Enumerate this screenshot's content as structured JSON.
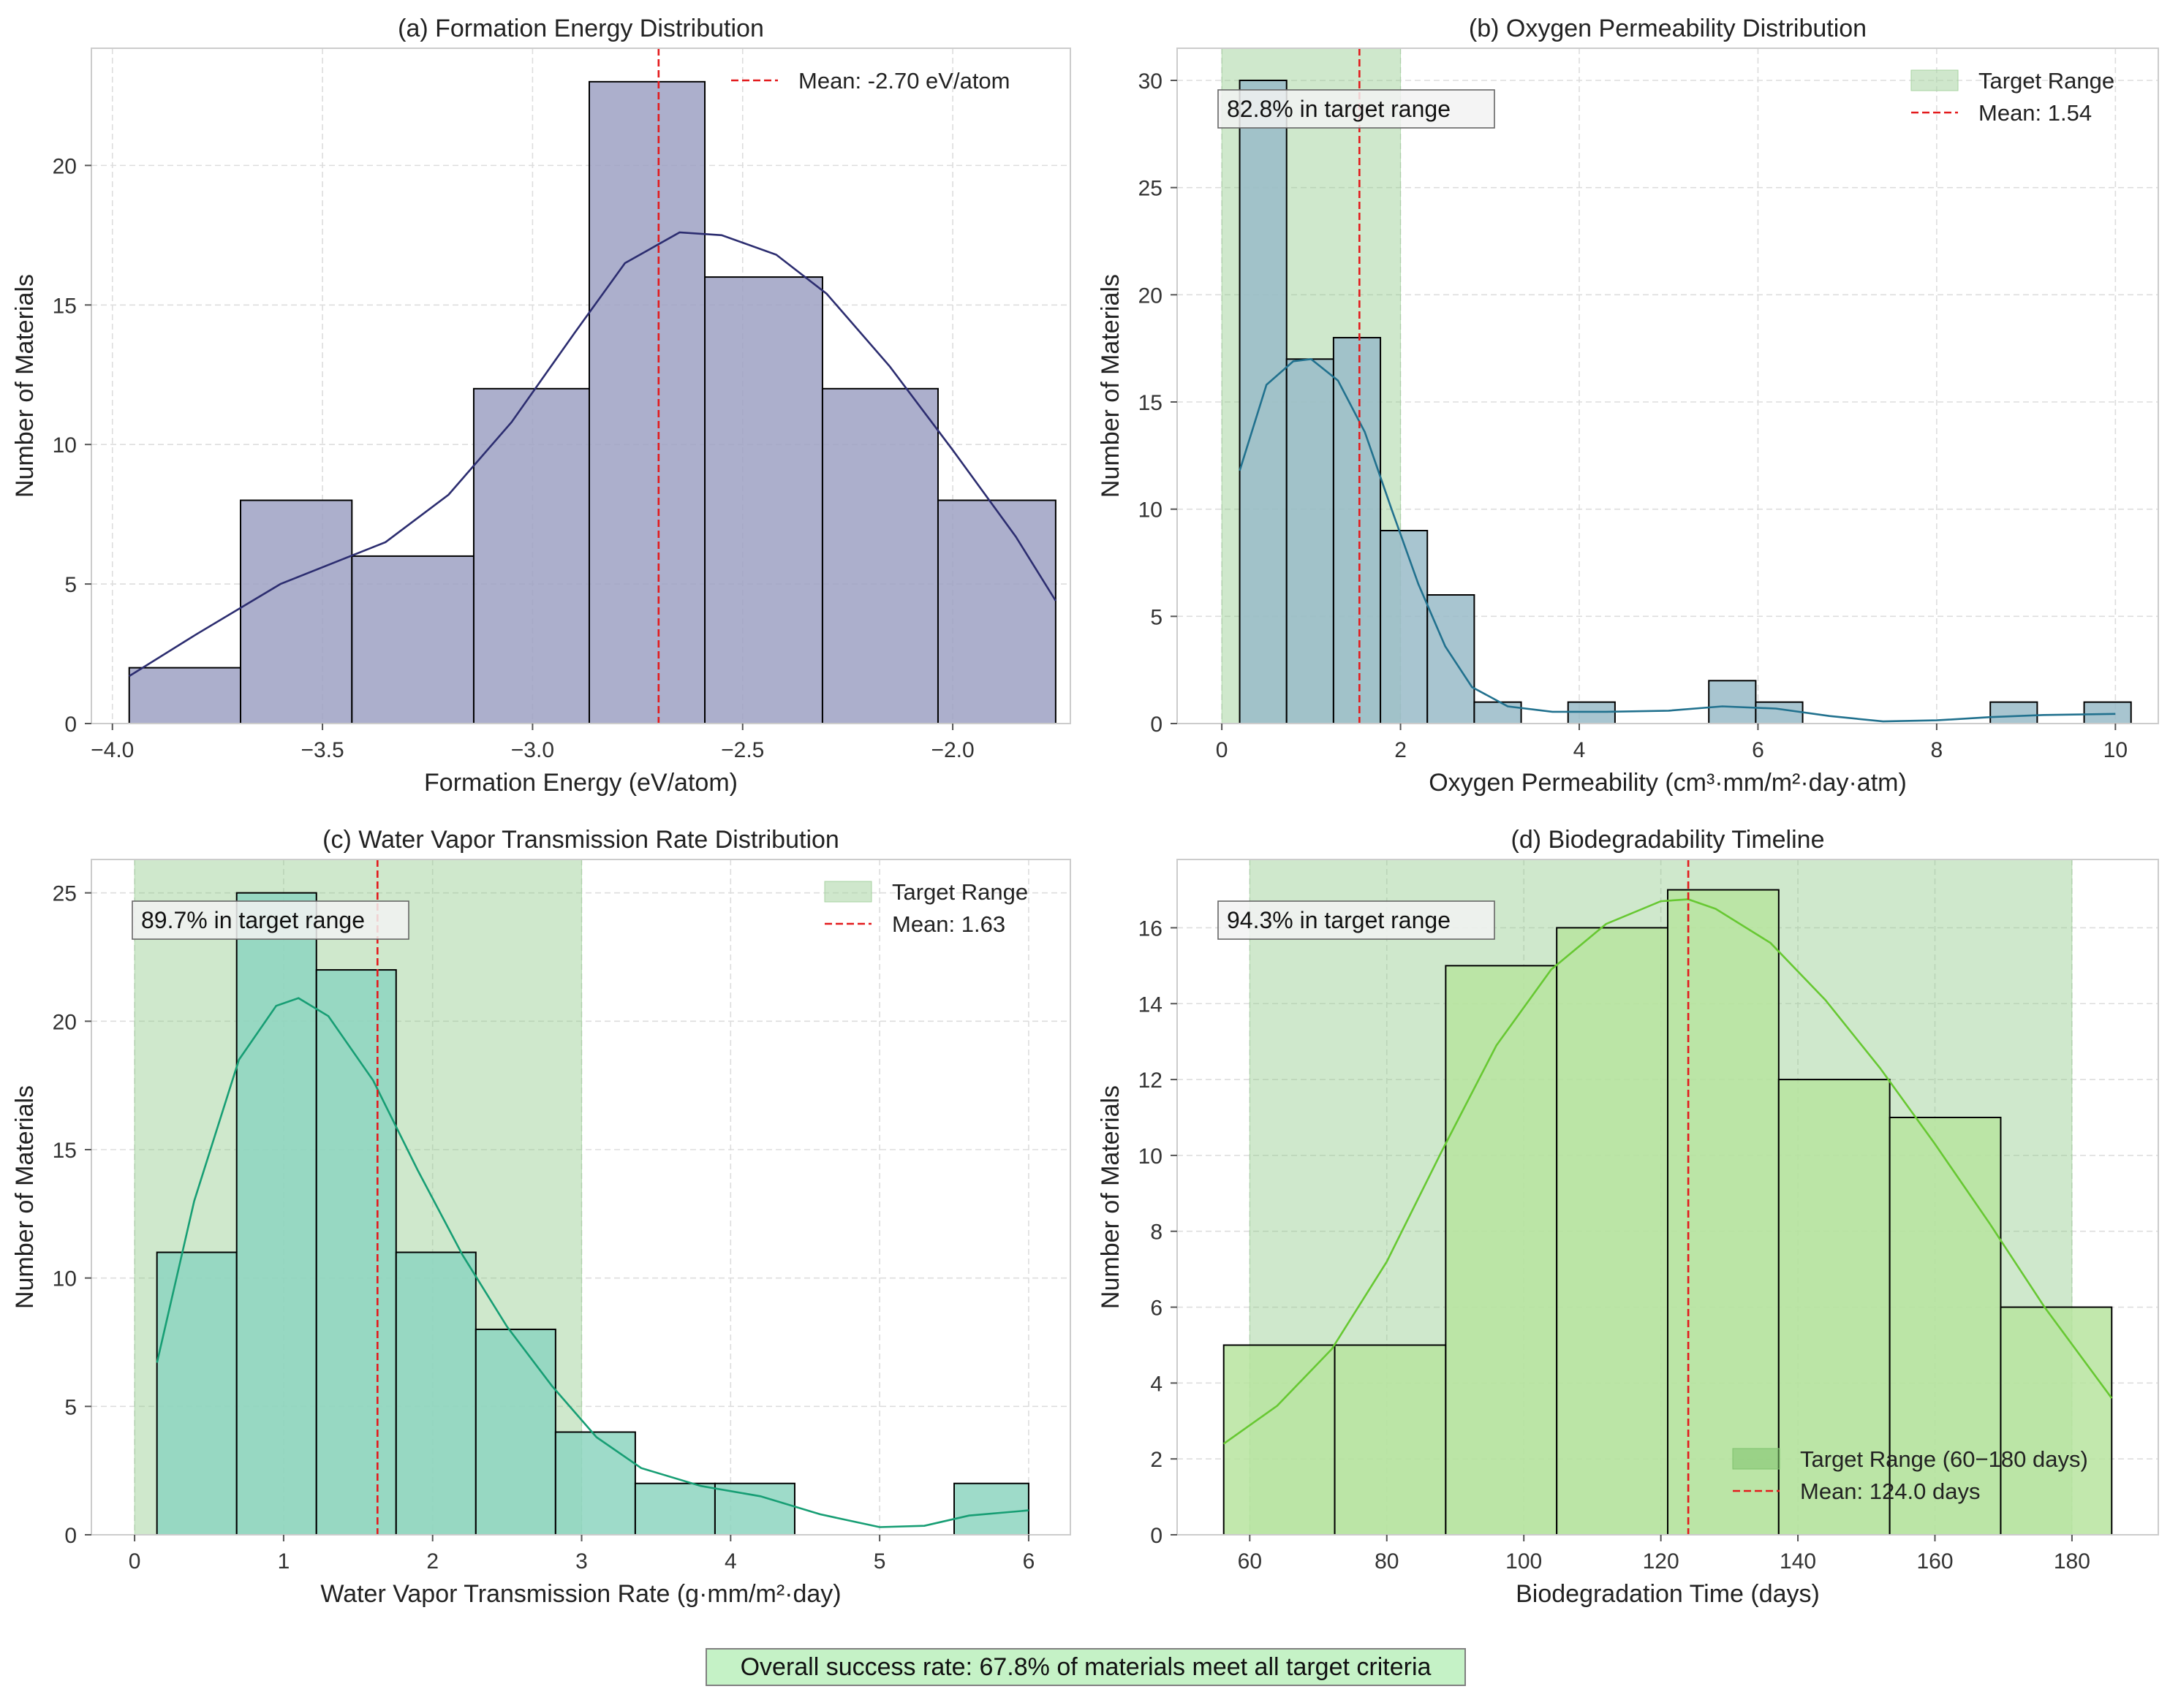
{
  "figure": {
    "footer": "Overall success rate: 67.8% of materials meet all target criteria",
    "footer_color": "#c5f2c6"
  },
  "chart_data": [
    {
      "type": "bar",
      "id": "a",
      "title": "(a) Formation Energy Distribution",
      "xlabel": "Formation Energy (eV/atom)",
      "ylabel": "Number of Materials",
      "xlim": [
        -4.05,
        -1.72
      ],
      "ylim": [
        0,
        24.2
      ],
      "xticks": [
        -4.0,
        -3.5,
        -3.0,
        -2.5,
        -2.0
      ],
      "xtick_labels": [
        "−4.0",
        "−3.5",
        "−3.0",
        "−2.5",
        "−2.0"
      ],
      "yticks": [
        0,
        5,
        10,
        15,
        20
      ],
      "ytick_labels": [
        "0",
        "5",
        "10",
        "15",
        "20"
      ],
      "bins": [
        -3.96,
        -3.695,
        -3.43,
        -3.14,
        -2.865,
        -2.59,
        -2.31,
        -2.035,
        -1.755
      ],
      "counts": [
        2,
        8,
        6,
        12,
        23,
        16,
        12,
        8
      ],
      "bar_color": "#9da1c3",
      "kde_color": "#2c2d70",
      "kde": [
        [
          -3.96,
          1.7
        ],
        [
          -3.8,
          3.2
        ],
        [
          -3.6,
          5.0
        ],
        [
          -3.45,
          5.9
        ],
        [
          -3.35,
          6.5
        ],
        [
          -3.2,
          8.2
        ],
        [
          -3.05,
          10.8
        ],
        [
          -2.9,
          14.0
        ],
        [
          -2.78,
          16.5
        ],
        [
          -2.65,
          17.6
        ],
        [
          -2.55,
          17.5
        ],
        [
          -2.42,
          16.8
        ],
        [
          -2.3,
          15.4
        ],
        [
          -2.15,
          12.8
        ],
        [
          -2.0,
          9.8
        ],
        [
          -1.85,
          6.7
        ],
        [
          -1.755,
          4.4
        ]
      ],
      "mean": -2.7,
      "legend": [
        {
          "kind": "line",
          "label": "Mean: -2.70 eV/atom",
          "color": "#e31a1c"
        }
      ]
    },
    {
      "type": "bar",
      "id": "b",
      "title": "(b) Oxygen Permeability Distribution",
      "xlabel": "Oxygen Permeability (cm³·mm/m²·day·atm)",
      "ylabel": "Number of Materials",
      "xlim": [
        -0.5,
        10.48
      ],
      "ylim": [
        0,
        31.5
      ],
      "xticks": [
        0,
        2,
        4,
        6,
        8,
        10
      ],
      "xtick_labels": [
        "0",
        "2",
        "4",
        "6",
        "8",
        "10"
      ],
      "yticks": [
        0,
        5,
        10,
        15,
        20,
        25,
        30
      ],
      "ytick_labels": [
        "0",
        "5",
        "10",
        "15",
        "20",
        "25",
        "30"
      ],
      "bins": [
        0.2,
        0.725,
        1.25,
        1.775,
        2.3,
        2.825,
        3.35,
        3.875,
        4.4,
        4.925,
        5.45,
        5.975,
        6.5,
        7.025,
        7.55,
        8.075,
        8.6,
        9.125,
        9.65,
        10.175
      ],
      "counts": [
        30,
        17,
        18,
        9,
        6,
        1,
        0,
        1,
        0,
        0,
        2,
        1,
        0,
        0,
        0,
        0,
        1,
        0,
        1
      ],
      "bar_color": "#99bbc8",
      "kde_color": "#21718e",
      "kde": [
        [
          0.2,
          11.8
        ],
        [
          0.5,
          15.8
        ],
        [
          0.8,
          16.9
        ],
        [
          1.0,
          17.0
        ],
        [
          1.3,
          16.0
        ],
        [
          1.6,
          13.6
        ],
        [
          1.9,
          10.0
        ],
        [
          2.2,
          6.5
        ],
        [
          2.5,
          3.6
        ],
        [
          2.8,
          1.7
        ],
        [
          3.2,
          0.8
        ],
        [
          3.7,
          0.55
        ],
        [
          4.3,
          0.55
        ],
        [
          5.0,
          0.6
        ],
        [
          5.6,
          0.8
        ],
        [
          6.2,
          0.7
        ],
        [
          6.8,
          0.35
        ],
        [
          7.4,
          0.1
        ],
        [
          8.0,
          0.15
        ],
        [
          8.6,
          0.3
        ],
        [
          9.2,
          0.4
        ],
        [
          10.0,
          0.45
        ]
      ],
      "mean": 1.54,
      "target_range": [
        0,
        2
      ],
      "annotation": "82.8% in target range",
      "legend": [
        {
          "kind": "patch",
          "label": "Target Range",
          "color": "#a7d3a2"
        },
        {
          "kind": "line",
          "label": "Mean: 1.54",
          "color": "#e31a1c"
        }
      ]
    },
    {
      "type": "bar",
      "id": "c",
      "title": "(c) Water Vapor Transmission Rate Distribution",
      "xlabel": "Water Vapor Transmission Rate (g·mm/m²·day)",
      "ylabel": "Number of Materials",
      "xlim": [
        -0.29,
        6.28
      ],
      "ylim": [
        0,
        26.3
      ],
      "xticks": [
        0,
        1,
        2,
        3,
        4,
        5,
        6
      ],
      "xtick_labels": [
        "0",
        "1",
        "2",
        "3",
        "4",
        "5",
        "6"
      ],
      "yticks": [
        0,
        5,
        10,
        15,
        20,
        25
      ],
      "ytick_labels": [
        "0",
        "5",
        "10",
        "15",
        "20",
        "25"
      ],
      "bins": [
        0.15,
        0.685,
        1.22,
        1.755,
        2.29,
        2.825,
        3.36,
        3.895,
        4.43,
        4.965,
        5.5,
        6.0
      ],
      "counts": [
        11,
        25,
        22,
        11,
        8,
        4,
        2,
        2,
        0,
        0,
        2
      ],
      "bar_color": "#8dd5bf",
      "kde_color": "#179e74",
      "kde": [
        [
          0.15,
          6.7
        ],
        [
          0.4,
          13.0
        ],
        [
          0.7,
          18.5
        ],
        [
          0.95,
          20.6
        ],
        [
          1.1,
          20.9
        ],
        [
          1.3,
          20.2
        ],
        [
          1.6,
          17.7
        ],
        [
          1.9,
          14.2
        ],
        [
          2.2,
          10.9
        ],
        [
          2.5,
          8.1
        ],
        [
          2.8,
          5.8
        ],
        [
          3.1,
          3.8
        ],
        [
          3.4,
          2.6
        ],
        [
          3.8,
          1.9
        ],
        [
          4.2,
          1.5
        ],
        [
          4.6,
          0.8
        ],
        [
          5.0,
          0.3
        ],
        [
          5.3,
          0.35
        ],
        [
          5.6,
          0.75
        ],
        [
          6.0,
          0.95
        ]
      ],
      "mean": 1.63,
      "target_range": [
        0,
        3
      ],
      "annotation": "89.7% in target range",
      "legend": [
        {
          "kind": "patch",
          "label": "Target Range",
          "color": "#a7d3a2"
        },
        {
          "kind": "line",
          "label": "Mean: 1.63",
          "color": "#e31a1c"
        }
      ]
    },
    {
      "type": "bar",
      "id": "d",
      "title": "(d) Biodegradability Timeline",
      "xlabel": "Biodegradation Time (days)",
      "ylabel": "Number of Materials",
      "xlim": [
        49.4,
        192.6
      ],
      "ylim": [
        0,
        17.8
      ],
      "xticks": [
        60,
        80,
        100,
        120,
        140,
        160,
        180
      ],
      "xtick_labels": [
        "60",
        "80",
        "100",
        "120",
        "140",
        "160",
        "180"
      ],
      "yticks": [
        0,
        2,
        4,
        6,
        8,
        10,
        12,
        14,
        16
      ],
      "ytick_labels": [
        "0",
        "2",
        "4",
        "6",
        "8",
        "10",
        "12",
        "14",
        "16"
      ],
      "bins": [
        56.2,
        72.4,
        88.6,
        104.8,
        121.0,
        137.2,
        153.4,
        169.6,
        185.8
      ],
      "counts": [
        5,
        5,
        15,
        16,
        17,
        12,
        11,
        6
      ],
      "bar_color": "#b7e49f",
      "kde_color": "#67c832",
      "kde": [
        [
          56.2,
          2.4
        ],
        [
          64,
          3.4
        ],
        [
          72,
          4.9
        ],
        [
          80,
          7.2
        ],
        [
          88,
          10.1
        ],
        [
          96,
          12.9
        ],
        [
          104,
          14.9
        ],
        [
          112,
          16.1
        ],
        [
          120,
          16.7
        ],
        [
          124,
          16.75
        ],
        [
          128,
          16.5
        ],
        [
          136,
          15.6
        ],
        [
          144,
          14.1
        ],
        [
          152,
          12.3
        ],
        [
          160,
          10.3
        ],
        [
          168,
          8.2
        ],
        [
          176,
          6.0
        ],
        [
          185.8,
          3.6
        ]
      ],
      "mean": 124.0,
      "target_range": [
        60,
        180
      ],
      "annotation": "94.3% in target range",
      "legend": [
        {
          "kind": "patch",
          "label": "Target Range (60−180 days)",
          "color": "#7fc26e"
        },
        {
          "kind": "line",
          "label": "Mean: 124.0 days",
          "color": "#e31a1c"
        }
      ]
    }
  ]
}
